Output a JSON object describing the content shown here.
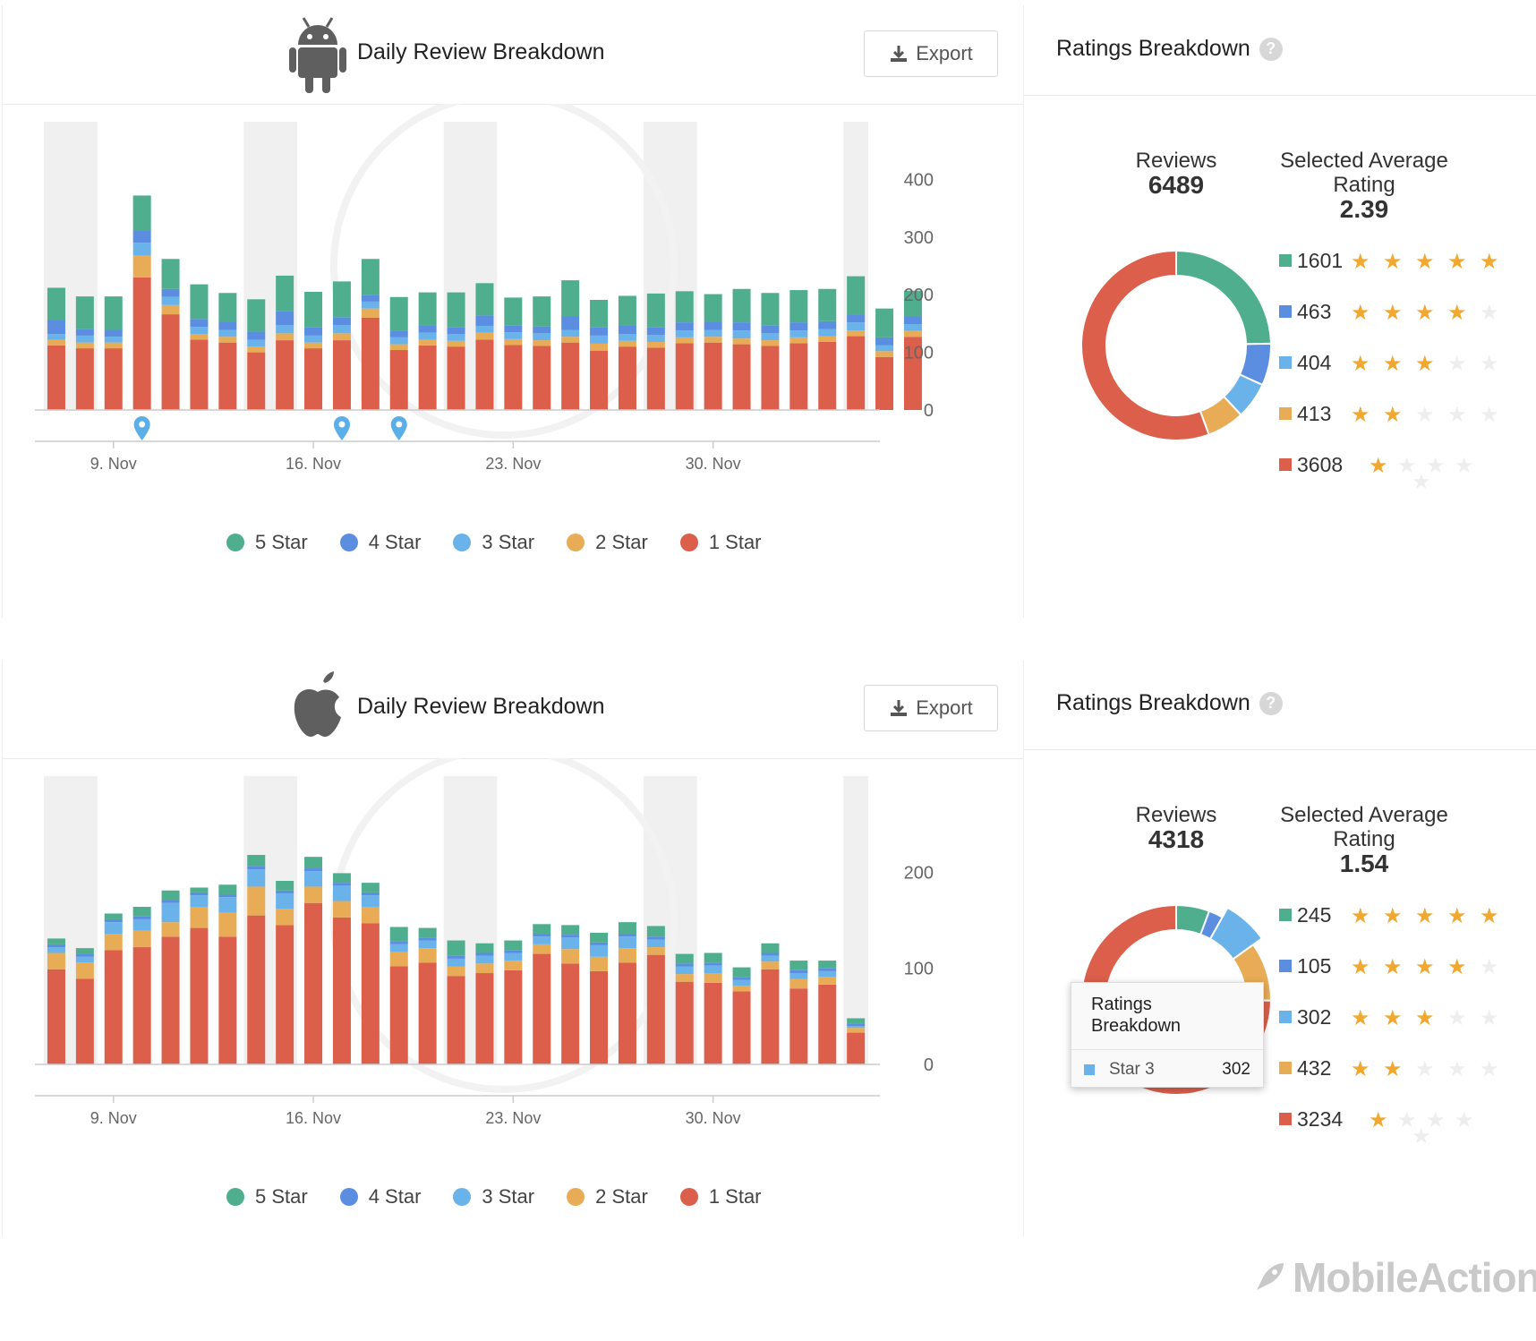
{
  "colors": {
    "star5": "#4fae8e",
    "star4": "#5b8ee0",
    "star3": "#69b3ea",
    "star2": "#e8ac57",
    "star1": "#db5f4b",
    "grey": "#f0f0f0",
    "axis": "#777",
    "pin": "#5aafe8"
  },
  "android": {
    "title": "Daily Review Breakdown",
    "os_icon": "android-icon",
    "export_label": "Export",
    "legend": [
      "5 Star",
      "4 Star",
      "3 Star",
      "2 Star",
      "1 Star"
    ],
    "ratings": {
      "title": "Ratings Breakdown",
      "help": "?",
      "reviews_label": "Reviews",
      "reviews": "6489",
      "avg_label_1": "Selected Average",
      "avg_label_2": "Rating",
      "avg": "2.39",
      "rows": [
        {
          "count": "1601",
          "stars": 5
        },
        {
          "count": "463",
          "stars": 4
        },
        {
          "count": "404",
          "stars": 3
        },
        {
          "count": "413",
          "stars": 2
        },
        {
          "count": "3608",
          "stars": 1
        }
      ]
    }
  },
  "ios": {
    "title": "Daily Review Breakdown",
    "os_icon": "apple-icon",
    "export_label": "Export",
    "legend": [
      "5 Star",
      "4 Star",
      "3 Star",
      "2 Star",
      "1 Star"
    ],
    "ratings": {
      "title": "Ratings Breakdown",
      "help": "?",
      "reviews_label": "Reviews",
      "reviews": "4318",
      "avg_label_1": "Selected Average",
      "avg_label_2": "Rating",
      "avg": "1.54",
      "rows": [
        {
          "count": "245",
          "stars": 5
        },
        {
          "count": "105",
          "stars": 4
        },
        {
          "count": "302",
          "stars": 3
        },
        {
          "count": "432",
          "stars": 2
        },
        {
          "count": "3234",
          "stars": 1
        }
      ],
      "tooltip": {
        "title": "Ratings Breakdown",
        "label": "Star 3",
        "value": "302"
      }
    }
  },
  "chart_data": [
    {
      "type": "bar",
      "stacked": true,
      "title": "Daily Review Breakdown (Android)",
      "x_ticks": [
        "9. Nov",
        "16. Nov",
        "23. Nov",
        "30. Nov"
      ],
      "x_tick_index": [
        2,
        9,
        16,
        23
      ],
      "weekend_bands": [
        [
          0,
          1
        ],
        [
          7,
          8
        ],
        [
          14,
          15
        ],
        [
          21,
          22
        ],
        [
          28
        ]
      ],
      "y_ticks": [
        0,
        100,
        200,
        300,
        400
      ],
      "ylim": [
        0,
        500
      ],
      "annotation_markers": [
        3,
        10,
        12
      ],
      "series": [
        {
          "name": "1 Star",
          "values": [
            112,
            107,
            107,
            230,
            166,
            122,
            117,
            100,
            121,
            107,
            121,
            160,
            104,
            112,
            110,
            122,
            113,
            111,
            117,
            103,
            110,
            108,
            116,
            117,
            114,
            111,
            116,
            118,
            128,
            92,
            127
          ]
        },
        {
          "name": "2 Star",
          "values": [
            10,
            10,
            10,
            38,
            16,
            10,
            10,
            10,
            12,
            10,
            12,
            16,
            10,
            10,
            10,
            12,
            10,
            10,
            10,
            12,
            10,
            10,
            10,
            10,
            10,
            10,
            10,
            10,
            10,
            10,
            10
          ]
        },
        {
          "name": "3 Star",
          "values": [
            10,
            12,
            10,
            22,
            14,
            12,
            12,
            12,
            14,
            12,
            14,
            12,
            12,
            12,
            12,
            12,
            12,
            12,
            12,
            14,
            12,
            12,
            12,
            12,
            14,
            12,
            12,
            12,
            14,
            10,
            12
          ]
        },
        {
          "name": "4 Star",
          "values": [
            24,
            12,
            12,
            22,
            14,
            14,
            14,
            14,
            24,
            14,
            14,
            12,
            12,
            12,
            12,
            18,
            12,
            12,
            24,
            14,
            14,
            14,
            14,
            14,
            14,
            14,
            14,
            14,
            14,
            14,
            14
          ]
        },
        {
          "name": "5 Star",
          "values": [
            56,
            56,
            58,
            60,
            52,
            60,
            50,
            56,
            62,
            62,
            62,
            62,
            58,
            58,
            60,
            56,
            48,
            52,
            62,
            48,
            52,
            58,
            54,
            48,
            58,
            56,
            56,
            56,
            66,
            50,
            44
          ]
        }
      ]
    },
    {
      "type": "bar",
      "stacked": true,
      "title": "Daily Review Breakdown (iOS)",
      "x_ticks": [
        "9. Nov",
        "16. Nov",
        "23. Nov",
        "30. Nov"
      ],
      "x_tick_index": [
        2,
        9,
        16,
        23
      ],
      "weekend_bands": [
        [
          0,
          1
        ],
        [
          7,
          8
        ],
        [
          14,
          15
        ],
        [
          21,
          22
        ],
        [
          28
        ]
      ],
      "y_ticks": [
        0,
        100,
        200
      ],
      "ylim": [
        0,
        300
      ],
      "annotation_markers": [],
      "series": [
        {
          "name": "1 Star",
          "values": [
            99,
            89,
            119,
            122,
            133,
            142,
            133,
            155,
            145,
            168,
            153,
            147,
            102,
            106,
            92,
            95,
            98,
            115,
            105,
            97,
            106,
            114,
            86,
            85,
            76,
            99,
            79,
            83,
            33
          ]
        },
        {
          "name": "2 Star",
          "values": [
            17,
            17,
            17,
            17,
            15,
            22,
            25,
            30,
            17,
            17,
            17,
            17,
            15,
            15,
            10,
            10,
            10,
            10,
            15,
            15,
            15,
            8,
            8,
            10,
            6,
            8,
            10,
            8,
            5
          ]
        },
        {
          "name": "3 Star",
          "values": [
            6,
            6,
            12,
            12,
            20,
            12,
            16,
            18,
            16,
            16,
            16,
            12,
            8,
            8,
            8,
            8,
            8,
            8,
            12,
            12,
            12,
            8,
            8,
            8,
            6,
            6,
            6,
            6,
            2
          ]
        },
        {
          "name": "4 Star",
          "values": [
            3,
            3,
            3,
            3,
            3,
            3,
            3,
            3,
            3,
            3,
            3,
            3,
            3,
            3,
            3,
            3,
            3,
            3,
            3,
            3,
            3,
            3,
            3,
            3,
            3,
            3,
            3,
            3,
            2
          ]
        },
        {
          "name": "5 Star",
          "values": [
            6,
            6,
            6,
            10,
            10,
            5,
            10,
            12,
            10,
            12,
            10,
            10,
            15,
            10,
            16,
            10,
            10,
            10,
            10,
            10,
            12,
            11,
            10,
            10,
            10,
            10,
            10,
            8,
            6
          ]
        }
      ]
    },
    {
      "type": "pie",
      "title": "Ratings Breakdown (Android)",
      "labels": [
        "5 Star",
        "4 Star",
        "3 Star",
        "2 Star",
        "1 Star"
      ],
      "values": [
        1601,
        463,
        404,
        413,
        3608
      ]
    },
    {
      "type": "pie",
      "title": "Ratings Breakdown (iOS)",
      "labels": [
        "5 Star",
        "4 Star",
        "3 Star",
        "2 Star",
        "1 Star"
      ],
      "values": [
        245,
        105,
        302,
        432,
        3234
      ],
      "highlighted": "3 Star"
    }
  ]
}
